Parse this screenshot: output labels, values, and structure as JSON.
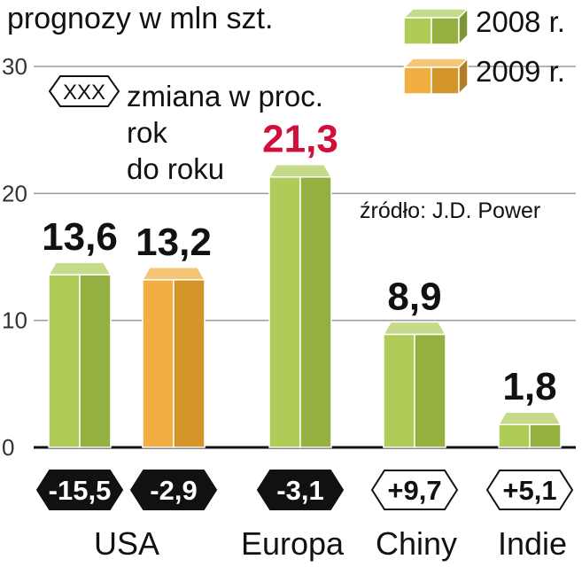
{
  "subtitle": "prognozy w mln szt.",
  "source": "źródło: J.D. Power",
  "legend": {
    "series": [
      {
        "label": "2008 r.",
        "color": "#a8c84a"
      },
      {
        "label": "2009 r.",
        "color": "#f0a830"
      }
    ],
    "change_marker": "XXX",
    "change_note_lines": [
      "zmiana w proc.",
      "rok",
      "do roku"
    ]
  },
  "chart_data": {
    "type": "bar",
    "ylim": [
      0,
      30
    ],
    "yticks": [
      0,
      10,
      20,
      30
    ],
    "grid": true,
    "bars": [
      {
        "group": "USA",
        "series": "2008 r.",
        "value": 13.6,
        "label": "13,6",
        "change": "-15,5",
        "change_dark": true
      },
      {
        "group": "USA",
        "series": "2009 r.",
        "value": 13.2,
        "label": "13,2",
        "change": "-2,9",
        "change_dark": true
      },
      {
        "group": "Europa",
        "series": "2008 r.",
        "value": 21.3,
        "label": "21,3",
        "change": "-3,1",
        "change_dark": true,
        "label_color": "#d0103a"
      },
      {
        "group": "Chiny",
        "series": "2008 r.",
        "value": 8.9,
        "label": "8,9",
        "change": "+9,7",
        "change_dark": false
      },
      {
        "group": "Indie",
        "series": "2008 r.",
        "value": 1.8,
        "label": "1,8",
        "change": "+5,1",
        "change_dark": false
      }
    ],
    "categories": [
      "USA",
      "Europa",
      "Chiny",
      "Indie"
    ]
  }
}
